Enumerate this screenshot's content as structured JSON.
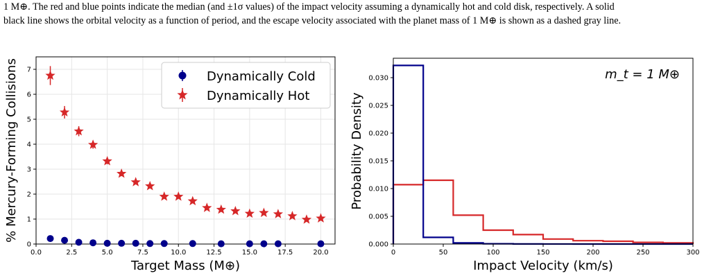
{
  "caption": {
    "line1": "1 M⊕. The red and blue points indicate the median (and ±1σ values) of the impact velocity assuming a dynamically hot and cold disk, respectively. A solid",
    "line2": "black line shows the orbital velocity as a function of period, and the escape velocity associated with the planet mass of 1 M⊕ is shown as a dashed gray line."
  },
  "chart_data": [
    {
      "type": "scatter",
      "xlabel": "Target Mass (M⊕)",
      "ylabel": "% Mercury-Forming Collisions",
      "xlim": [
        0,
        21
      ],
      "ylim": [
        0,
        7.5
      ],
      "xticks": [
        0.0,
        2.5,
        5.0,
        7.5,
        10.0,
        12.5,
        15.0,
        17.5,
        20.0
      ],
      "xtick_labels": [
        "0.0",
        "2.5",
        "5.0",
        "7.5",
        "10.0",
        "12.5",
        "15.0",
        "17.5",
        "20.0"
      ],
      "yticks": [
        0,
        1,
        2,
        3,
        4,
        5,
        6,
        7
      ],
      "ytick_labels": [
        "0",
        "1",
        "2",
        "3",
        "4",
        "5",
        "6",
        "7"
      ],
      "grid": true,
      "legend": "top-right",
      "series": [
        {
          "name": "Dynamically Cold",
          "marker": "circle",
          "color": "#00008b",
          "x": [
            1,
            2,
            3,
            4,
            5,
            6,
            7,
            8,
            9,
            11,
            13,
            15,
            16,
            17,
            20
          ],
          "y": [
            0.22,
            0.15,
            0.07,
            0.05,
            0.03,
            0.03,
            0.03,
            0.02,
            0.02,
            0.02,
            0.01,
            0.01,
            0.01,
            0.01,
            0.01
          ],
          "err": [
            0.05,
            0.04,
            0.03,
            0.02,
            0.02,
            0.02,
            0.02,
            0.02,
            0.02,
            0.02,
            0.01,
            0.01,
            0.01,
            0.01,
            0.01
          ]
        },
        {
          "name": "Dynamically Hot",
          "marker": "star",
          "color": "#d62728",
          "x": [
            1,
            2,
            3,
            4,
            5,
            6,
            7,
            8,
            9,
            10,
            11,
            12,
            13,
            14,
            15,
            16,
            17,
            18,
            19,
            20
          ],
          "y": [
            6.75,
            5.28,
            4.52,
            3.98,
            3.32,
            2.82,
            2.48,
            2.32,
            1.9,
            1.9,
            1.72,
            1.45,
            1.38,
            1.32,
            1.22,
            1.25,
            1.2,
            1.12,
            0.98,
            1.03
          ],
          "err": [
            0.38,
            0.25,
            0.2,
            0.16,
            0.12,
            0.1,
            0.09,
            0.09,
            0.08,
            0.08,
            0.07,
            0.07,
            0.06,
            0.06,
            0.06,
            0.06,
            0.06,
            0.05,
            0.05,
            0.05
          ]
        }
      ]
    },
    {
      "type": "histogram",
      "xlabel": "Impact Velocity (km/s)",
      "ylabel": "Probability Density",
      "annotation": "m_t = 1 M⊕",
      "xlim": [
        0,
        300
      ],
      "ylim": [
        0,
        0.0335
      ],
      "xticks": [
        0,
        50,
        100,
        150,
        200,
        250,
        300
      ],
      "xtick_labels": [
        "0",
        "50",
        "100",
        "150",
        "200",
        "250",
        "300"
      ],
      "yticks": [
        0,
        0.005,
        0.01,
        0.015,
        0.02,
        0.025,
        0.03
      ],
      "ytick_labels": [
        "0.000",
        "0.005",
        "0.010",
        "0.015",
        "0.020",
        "0.025",
        "0.030"
      ],
      "bin_edges": [
        0,
        30,
        60,
        90,
        120,
        150,
        180,
        210,
        240,
        270,
        300
      ],
      "series": [
        {
          "color": "#d62728",
          "values": [
            0.0107,
            0.0115,
            0.0052,
            0.0025,
            0.0017,
            0.0009,
            0.0006,
            0.0005,
            0.0003,
            0.0002
          ]
        },
        {
          "color": "#00008b",
          "values": [
            0.0322,
            0.0012,
            0.0002,
            5e-05,
            2e-05,
            1e-05,
            0.0,
            0.0,
            0.0,
            0.0
          ]
        }
      ]
    }
  ]
}
